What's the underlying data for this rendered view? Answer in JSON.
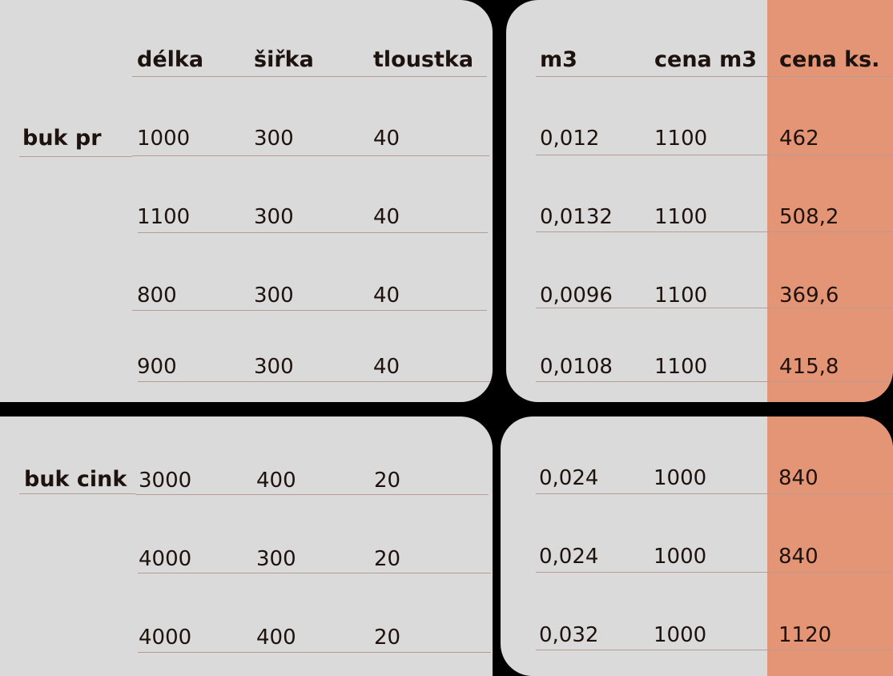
{
  "accent_color": "#e49576",
  "panel_color": "#dadada",
  "headers": {
    "delka": "délka",
    "sirka": "šiřka",
    "tloustka": "tloustka",
    "m3": "m3",
    "cena_m3": "cena m3",
    "cena_ks": "cena ks."
  },
  "groups": [
    {
      "label": "buk pr",
      "rows": [
        {
          "delka": "1000",
          "sirka": "300",
          "tloustka": "40",
          "m3": "0,012",
          "cena_m3": "1100",
          "cena_ks": "462"
        },
        {
          "delka": "1100",
          "sirka": "300",
          "tloustka": "40",
          "m3": "0,0132",
          "cena_m3": "1100",
          "cena_ks": "508,2"
        },
        {
          "delka": "800",
          "sirka": "300",
          "tloustka": "40",
          "m3": "0,0096",
          "cena_m3": "1100",
          "cena_ks": "369,6"
        },
        {
          "delka": "900",
          "sirka": "300",
          "tloustka": "40",
          "m3": "0,0108",
          "cena_m3": "1100",
          "cena_ks": "415,8"
        }
      ]
    },
    {
      "label": "buk cink",
      "rows": [
        {
          "delka": "3000",
          "sirka": "400",
          "tloustka": "20",
          "m3": "0,024",
          "cena_m3": "1000",
          "cena_ks": "840"
        },
        {
          "delka": "4000",
          "sirka": "300",
          "tloustka": "20",
          "m3": "0,024",
          "cena_m3": "1000",
          "cena_ks": "840"
        },
        {
          "delka": "4000",
          "sirka": "400",
          "tloustka": "20",
          "m3": "0,032",
          "cena_m3": "1000",
          "cena_ks": "1120"
        }
      ]
    }
  ]
}
